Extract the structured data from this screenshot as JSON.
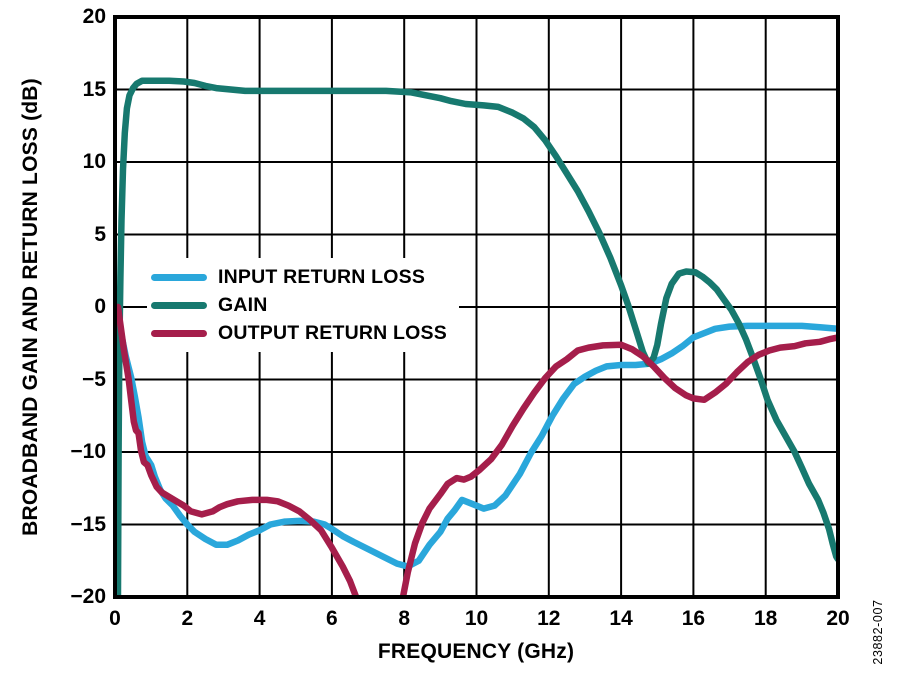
{
  "figure": {
    "watermark": "23882-007"
  },
  "chart_data": {
    "type": "line",
    "title": "",
    "xlabel": "FREQUENCY (GHz)",
    "ylabel": "BROADBAND GAIN AND RETURN LOSS (dB)",
    "xlim": [
      0,
      20
    ],
    "ylim": [
      -20,
      20
    ],
    "x_ticks": [
      0,
      2,
      4,
      6,
      8,
      10,
      12,
      14,
      16,
      18,
      20
    ],
    "y_ticks": [
      20,
      15,
      10,
      5,
      0,
      -5,
      -10,
      -15,
      -20
    ],
    "grid": true,
    "legend_position": "inside-left-center",
    "grid_color": "#000000",
    "series": [
      {
        "name": "INPUT RETURN LOSS",
        "color": "#2AA7DB",
        "points": [
          [
            0.05,
            0
          ],
          [
            0.1,
            -0.8
          ],
          [
            0.2,
            -2.2
          ],
          [
            0.3,
            -3.4
          ],
          [
            0.45,
            -4.9
          ],
          [
            0.55,
            -6.2
          ],
          [
            0.65,
            -7.6
          ],
          [
            0.75,
            -9.3
          ],
          [
            0.85,
            -10.3
          ],
          [
            1.0,
            -10.9
          ],
          [
            1.1,
            -11.7
          ],
          [
            1.25,
            -12.6
          ],
          [
            1.4,
            -13.2
          ],
          [
            1.6,
            -13.7
          ],
          [
            1.8,
            -14.4
          ],
          [
            2.0,
            -15.0
          ],
          [
            2.2,
            -15.5
          ],
          [
            2.5,
            -16.0
          ],
          [
            2.8,
            -16.4
          ],
          [
            3.1,
            -16.4
          ],
          [
            3.4,
            -16.1
          ],
          [
            3.7,
            -15.7
          ],
          [
            4.0,
            -15.4
          ],
          [
            4.3,
            -15.0
          ],
          [
            4.7,
            -14.8
          ],
          [
            5.1,
            -14.75
          ],
          [
            5.5,
            -14.8
          ],
          [
            5.8,
            -15.0
          ],
          [
            6.0,
            -15.3
          ],
          [
            6.3,
            -15.8
          ],
          [
            6.6,
            -16.2
          ],
          [
            7.0,
            -16.7
          ],
          [
            7.4,
            -17.2
          ],
          [
            7.8,
            -17.7
          ],
          [
            8.1,
            -17.9
          ],
          [
            8.4,
            -17.5
          ],
          [
            8.7,
            -16.4
          ],
          [
            9.0,
            -15.5
          ],
          [
            9.2,
            -14.6
          ],
          [
            9.4,
            -14.0
          ],
          [
            9.6,
            -13.3
          ],
          [
            9.9,
            -13.6
          ],
          [
            10.2,
            -13.9
          ],
          [
            10.5,
            -13.7
          ],
          [
            10.8,
            -13.0
          ],
          [
            11.2,
            -11.5
          ],
          [
            11.5,
            -10.1
          ],
          [
            11.8,
            -8.9
          ],
          [
            12.1,
            -7.5
          ],
          [
            12.4,
            -6.3
          ],
          [
            12.7,
            -5.3
          ],
          [
            13.0,
            -4.8
          ],
          [
            13.3,
            -4.4
          ],
          [
            13.6,
            -4.1
          ],
          [
            14.0,
            -4.0
          ],
          [
            14.4,
            -4.0
          ],
          [
            14.8,
            -3.9
          ],
          [
            15.1,
            -3.6
          ],
          [
            15.4,
            -3.2
          ],
          [
            15.7,
            -2.7
          ],
          [
            16.0,
            -2.1
          ],
          [
            16.3,
            -1.8
          ],
          [
            16.6,
            -1.5
          ],
          [
            17.0,
            -1.35
          ],
          [
            17.5,
            -1.3
          ],
          [
            18.0,
            -1.3
          ],
          [
            18.5,
            -1.3
          ],
          [
            19.0,
            -1.3
          ],
          [
            19.5,
            -1.4
          ],
          [
            20.0,
            -1.5
          ]
        ]
      },
      {
        "name": "GAIN",
        "color": "#17796F",
        "points": [
          [
            0.08,
            -21
          ],
          [
            0.1,
            -10
          ],
          [
            0.12,
            -3
          ],
          [
            0.15,
            2
          ],
          [
            0.18,
            6
          ],
          [
            0.22,
            9.5
          ],
          [
            0.27,
            12
          ],
          [
            0.33,
            13.7
          ],
          [
            0.4,
            14.6
          ],
          [
            0.5,
            15.1
          ],
          [
            0.6,
            15.4
          ],
          [
            0.75,
            15.6
          ],
          [
            1.0,
            15.6
          ],
          [
            1.5,
            15.6
          ],
          [
            1.9,
            15.55
          ],
          [
            2.2,
            15.45
          ],
          [
            2.5,
            15.25
          ],
          [
            2.8,
            15.1
          ],
          [
            3.2,
            15.0
          ],
          [
            3.6,
            14.9
          ],
          [
            4.5,
            14.9
          ],
          [
            5.5,
            14.9
          ],
          [
            6.5,
            14.9
          ],
          [
            7.5,
            14.9
          ],
          [
            8.2,
            14.8
          ],
          [
            8.6,
            14.6
          ],
          [
            9.0,
            14.4
          ],
          [
            9.3,
            14.2
          ],
          [
            9.7,
            14.0
          ],
          [
            10.2,
            13.9
          ],
          [
            10.6,
            13.8
          ],
          [
            11.0,
            13.4
          ],
          [
            11.3,
            13.0
          ],
          [
            11.6,
            12.4
          ],
          [
            11.9,
            11.5
          ],
          [
            12.2,
            10.4
          ],
          [
            12.5,
            9.2
          ],
          [
            12.8,
            8.0
          ],
          [
            13.1,
            6.6
          ],
          [
            13.4,
            5.1
          ],
          [
            13.7,
            3.4
          ],
          [
            14.0,
            1.5
          ],
          [
            14.2,
            0.1
          ],
          [
            14.4,
            -1.5
          ],
          [
            14.6,
            -3.1
          ],
          [
            14.75,
            -3.9
          ],
          [
            14.9,
            -3.5
          ],
          [
            15.0,
            -2.6
          ],
          [
            15.1,
            -1.2
          ],
          [
            15.25,
            0.6
          ],
          [
            15.4,
            1.6
          ],
          [
            15.6,
            2.3
          ],
          [
            15.8,
            2.45
          ],
          [
            16.05,
            2.4
          ],
          [
            16.25,
            2.1
          ],
          [
            16.45,
            1.7
          ],
          [
            16.65,
            1.2
          ],
          [
            16.85,
            0.5
          ],
          [
            17.05,
            -0.2
          ],
          [
            17.25,
            -1.1
          ],
          [
            17.45,
            -2.2
          ],
          [
            17.65,
            -3.5
          ],
          [
            17.85,
            -4.9
          ],
          [
            18.05,
            -6.4
          ],
          [
            18.3,
            -7.8
          ],
          [
            18.55,
            -8.9
          ],
          [
            18.8,
            -10.0
          ],
          [
            19.0,
            -11.1
          ],
          [
            19.2,
            -12.2
          ],
          [
            19.45,
            -13.3
          ],
          [
            19.6,
            -14.2
          ],
          [
            19.75,
            -15.3
          ],
          [
            19.85,
            -16.3
          ],
          [
            19.95,
            -17.2
          ],
          [
            20.0,
            -17.4
          ]
        ]
      },
      {
        "name": "OUTPUT RETURN LOSS",
        "color": "#A51E4B",
        "points": [
          [
            0.08,
            0
          ],
          [
            0.15,
            -1.2
          ],
          [
            0.25,
            -3.0
          ],
          [
            0.38,
            -5.0
          ],
          [
            0.45,
            -6.5
          ],
          [
            0.52,
            -7.9
          ],
          [
            0.58,
            -8.5
          ],
          [
            0.65,
            -8.7
          ],
          [
            0.72,
            -9.9
          ],
          [
            0.8,
            -10.7
          ],
          [
            0.9,
            -10.9
          ],
          [
            1.0,
            -11.6
          ],
          [
            1.15,
            -12.4
          ],
          [
            1.3,
            -12.8
          ],
          [
            1.5,
            -13.1
          ],
          [
            1.7,
            -13.4
          ],
          [
            1.9,
            -13.7
          ],
          [
            2.1,
            -14.1
          ],
          [
            2.4,
            -14.3
          ],
          [
            2.7,
            -14.1
          ],
          [
            2.9,
            -13.8
          ],
          [
            3.1,
            -13.6
          ],
          [
            3.4,
            -13.4
          ],
          [
            3.8,
            -13.3
          ],
          [
            4.2,
            -13.3
          ],
          [
            4.5,
            -13.4
          ],
          [
            4.8,
            -13.7
          ],
          [
            5.1,
            -14.1
          ],
          [
            5.4,
            -14.7
          ],
          [
            5.7,
            -15.4
          ],
          [
            6.0,
            -16.6
          ],
          [
            6.3,
            -17.9
          ],
          [
            6.5,
            -18.9
          ],
          [
            6.7,
            -20.2
          ],
          [
            6.9,
            -21.5
          ],
          [
            7.3,
            -22.0
          ],
          [
            7.7,
            -21.5
          ],
          [
            7.95,
            -20.2
          ],
          [
            8.1,
            -18.3
          ],
          [
            8.3,
            -16.3
          ],
          [
            8.5,
            -14.9
          ],
          [
            8.7,
            -13.9
          ],
          [
            9.0,
            -12.9
          ],
          [
            9.2,
            -12.2
          ],
          [
            9.45,
            -11.8
          ],
          [
            9.65,
            -11.9
          ],
          [
            9.85,
            -11.7
          ],
          [
            10.1,
            -11.2
          ],
          [
            10.4,
            -10.5
          ],
          [
            10.7,
            -9.5
          ],
          [
            11.0,
            -8.2
          ],
          [
            11.3,
            -7.0
          ],
          [
            11.6,
            -5.9
          ],
          [
            11.9,
            -4.9
          ],
          [
            12.2,
            -4.1
          ],
          [
            12.5,
            -3.6
          ],
          [
            12.8,
            -3.0
          ],
          [
            13.1,
            -2.8
          ],
          [
            13.5,
            -2.65
          ],
          [
            14.0,
            -2.6
          ],
          [
            14.3,
            -2.9
          ],
          [
            14.6,
            -3.4
          ],
          [
            14.9,
            -4.1
          ],
          [
            15.2,
            -4.9
          ],
          [
            15.5,
            -5.6
          ],
          [
            15.8,
            -6.1
          ],
          [
            16.0,
            -6.3
          ],
          [
            16.3,
            -6.4
          ],
          [
            16.6,
            -5.9
          ],
          [
            16.9,
            -5.3
          ],
          [
            17.2,
            -4.5
          ],
          [
            17.5,
            -3.8
          ],
          [
            17.8,
            -3.3
          ],
          [
            18.1,
            -3.0
          ],
          [
            18.4,
            -2.8
          ],
          [
            18.8,
            -2.7
          ],
          [
            19.1,
            -2.5
          ],
          [
            19.5,
            -2.4
          ],
          [
            19.8,
            -2.2
          ],
          [
            20.0,
            -2.1
          ]
        ]
      }
    ]
  }
}
